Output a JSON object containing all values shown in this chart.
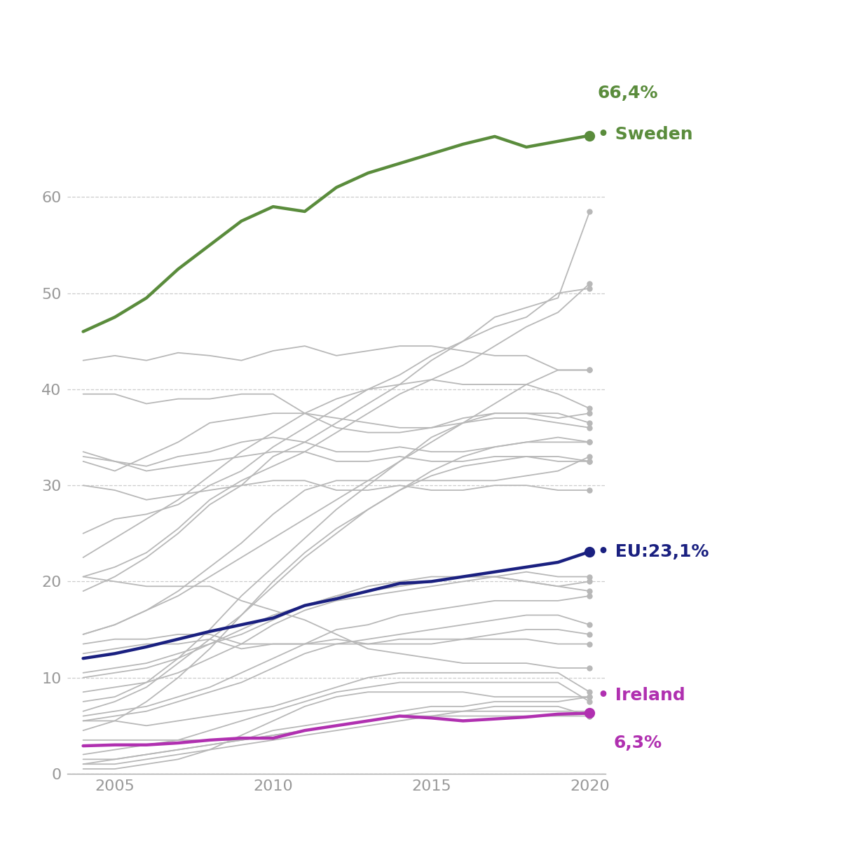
{
  "years": [
    2004,
    2005,
    2006,
    2007,
    2008,
    2009,
    2010,
    2011,
    2012,
    2013,
    2014,
    2015,
    2016,
    2017,
    2018,
    2019,
    2020
  ],
  "sweden": [
    46.0,
    47.5,
    49.5,
    52.5,
    55.0,
    57.5,
    59.0,
    58.5,
    61.0,
    62.5,
    63.5,
    64.5,
    65.5,
    66.3,
    65.2,
    65.8,
    66.4
  ],
  "ireland": [
    2.9,
    3.0,
    3.0,
    3.2,
    3.5,
    3.7,
    3.7,
    4.5,
    5.0,
    5.5,
    6.0,
    5.8,
    5.5,
    5.7,
    5.9,
    6.2,
    6.3
  ],
  "eu_avg": [
    12.0,
    12.5,
    13.2,
    14.0,
    14.8,
    15.5,
    16.2,
    17.5,
    18.2,
    19.0,
    19.8,
    20.0,
    20.5,
    21.0,
    21.5,
    22.0,
    23.1
  ],
  "other_countries": [
    [
      43.0,
      43.5,
      43.0,
      43.8,
      43.5,
      43.0,
      44.0,
      44.5,
      43.5,
      44.0,
      44.5,
      44.5,
      44.0,
      43.5,
      43.5,
      42.0,
      42.0
    ],
    [
      39.5,
      39.5,
      38.5,
      39.0,
      39.0,
      39.5,
      39.5,
      37.5,
      37.0,
      36.5,
      36.0,
      36.0,
      36.5,
      37.0,
      37.0,
      36.5,
      36.0
    ],
    [
      32.5,
      31.5,
      33.0,
      34.5,
      36.5,
      37.0,
      37.5,
      37.5,
      36.0,
      35.5,
      35.5,
      36.0,
      37.0,
      37.5,
      37.5,
      37.0,
      37.5
    ],
    [
      33.0,
      32.5,
      32.0,
      33.0,
      33.5,
      34.5,
      35.0,
      34.5,
      33.5,
      33.5,
      34.0,
      33.5,
      33.5,
      34.0,
      34.5,
      34.5,
      34.5
    ],
    [
      33.5,
      32.5,
      31.5,
      32.0,
      32.5,
      33.0,
      33.5,
      33.5,
      32.5,
      32.5,
      33.0,
      32.5,
      32.5,
      33.0,
      33.0,
      32.5,
      32.5
    ],
    [
      30.0,
      29.5,
      28.5,
      29.0,
      29.5,
      30.0,
      30.5,
      30.5,
      29.5,
      29.5,
      30.0,
      29.5,
      29.5,
      30.0,
      30.0,
      29.5,
      29.5
    ],
    [
      25.0,
      26.5,
      27.0,
      28.0,
      30.0,
      31.5,
      34.0,
      36.0,
      38.0,
      40.0,
      41.5,
      43.5,
      45.0,
      46.5,
      47.5,
      50.0,
      50.5
    ],
    [
      19.0,
      20.5,
      22.5,
      25.0,
      28.0,
      30.0,
      33.0,
      34.5,
      36.5,
      38.5,
      40.5,
      43.0,
      45.0,
      47.5,
      48.5,
      49.5,
      58.5
    ],
    [
      20.5,
      21.5,
      23.0,
      25.5,
      28.5,
      30.5,
      32.0,
      33.5,
      35.5,
      37.5,
      39.5,
      41.0,
      42.5,
      44.5,
      46.5,
      48.0,
      51.0
    ],
    [
      14.5,
      15.5,
      17.0,
      18.5,
      20.5,
      22.5,
      24.5,
      26.5,
      28.5,
      30.5,
      32.5,
      34.5,
      36.5,
      38.5,
      40.5,
      42.0,
      42.0
    ],
    [
      7.5,
      8.0,
      9.5,
      12.0,
      15.0,
      18.5,
      21.5,
      24.5,
      27.5,
      30.0,
      32.5,
      35.0,
      36.5,
      37.5,
      37.5,
      37.5,
      36.5
    ],
    [
      6.5,
      7.5,
      9.0,
      11.5,
      14.0,
      16.5,
      19.5,
      22.5,
      25.0,
      27.5,
      29.5,
      31.5,
      33.0,
      34.0,
      34.5,
      35.0,
      34.5
    ],
    [
      4.5,
      5.5,
      7.5,
      10.0,
      13.0,
      16.5,
      20.0,
      23.0,
      25.5,
      27.5,
      29.5,
      31.0,
      32.0,
      32.5,
      33.0,
      33.0,
      32.5
    ],
    [
      14.5,
      15.5,
      17.0,
      19.0,
      21.5,
      24.0,
      27.0,
      29.5,
      30.5,
      30.5,
      30.5,
      30.5,
      30.5,
      30.5,
      31.0,
      31.5,
      33.0
    ],
    [
      22.5,
      24.5,
      26.5,
      28.5,
      31.0,
      33.5,
      35.5,
      37.5,
      39.0,
      40.0,
      40.5,
      41.0,
      40.5,
      40.5,
      40.5,
      39.5,
      38.0
    ],
    [
      8.5,
      9.0,
      9.5,
      10.5,
      12.0,
      13.5,
      15.5,
      17.0,
      18.0,
      18.5,
      19.0,
      19.5,
      20.0,
      20.5,
      21.0,
      20.5,
      20.5
    ],
    [
      10.0,
      10.5,
      11.0,
      12.0,
      13.5,
      15.0,
      16.5,
      17.5,
      18.5,
      19.0,
      19.5,
      20.0,
      20.5,
      20.5,
      20.0,
      19.5,
      20.0
    ],
    [
      10.5,
      11.0,
      11.5,
      12.5,
      13.5,
      14.5,
      16.0,
      17.5,
      18.5,
      19.5,
      20.0,
      20.5,
      20.5,
      20.5,
      20.0,
      19.5,
      19.0
    ],
    [
      6.0,
      6.5,
      7.0,
      8.0,
      9.0,
      10.5,
      12.0,
      13.5,
      15.0,
      15.5,
      16.5,
      17.0,
      17.5,
      18.0,
      18.0,
      18.0,
      18.5
    ],
    [
      5.5,
      6.0,
      6.5,
      7.5,
      8.5,
      9.5,
      11.0,
      12.5,
      13.5,
      14.0,
      14.5,
      15.0,
      15.5,
      16.0,
      16.5,
      16.5,
      15.5
    ],
    [
      12.5,
      13.0,
      13.5,
      13.5,
      14.0,
      13.0,
      13.5,
      13.5,
      13.5,
      13.5,
      14.0,
      14.0,
      14.0,
      14.5,
      15.0,
      15.0,
      14.5
    ],
    [
      13.5,
      14.0,
      14.0,
      14.5,
      14.5,
      13.5,
      13.5,
      13.5,
      14.0,
      13.5,
      13.5,
      13.5,
      14.0,
      14.0,
      14.0,
      13.5,
      13.5
    ],
    [
      20.5,
      20.0,
      19.5,
      19.5,
      19.5,
      18.0,
      17.0,
      16.0,
      14.5,
      13.0,
      12.5,
      12.0,
      11.5,
      11.5,
      11.5,
      11.0,
      11.0
    ],
    [
      5.5,
      5.5,
      5.0,
      5.5,
      6.0,
      6.5,
      7.0,
      8.0,
      9.0,
      10.0,
      10.5,
      10.5,
      10.5,
      10.5,
      10.5,
      10.5,
      8.5
    ],
    [
      2.0,
      2.5,
      3.0,
      3.5,
      4.5,
      5.5,
      6.5,
      7.5,
      8.5,
      9.0,
      9.5,
      9.5,
      9.5,
      9.5,
      9.5,
      9.5,
      7.5
    ],
    [
      1.5,
      1.5,
      2.0,
      2.5,
      3.0,
      3.5,
      4.5,
      5.0,
      5.5,
      6.0,
      6.5,
      7.0,
      7.0,
      7.5,
      7.5,
      7.5,
      8.0
    ],
    [
      0.5,
      0.5,
      1.0,
      1.5,
      2.5,
      4.0,
      5.5,
      7.0,
      8.0,
      8.5,
      8.5,
      8.5,
      8.5,
      8.0,
      8.0,
      8.0,
      8.0
    ],
    [
      1.0,
      1.0,
      1.5,
      2.0,
      2.5,
      3.0,
      3.5,
      4.0,
      4.5,
      5.0,
      5.5,
      6.0,
      6.5,
      6.5,
      6.5,
      6.5,
      6.5
    ],
    [
      3.5,
      3.5,
      3.5,
      3.5,
      3.5,
      3.5,
      4.0,
      4.5,
      5.0,
      5.5,
      6.0,
      6.5,
      6.5,
      7.0,
      7.0,
      7.0,
      6.0
    ],
    [
      1.0,
      1.5,
      2.0,
      2.5,
      3.0,
      3.5,
      4.0,
      4.5,
      5.0,
      5.5,
      6.0,
      6.0,
      6.0,
      6.0,
      6.0,
      6.0,
      6.0
    ]
  ],
  "sweden_color": "#5a8c3c",
  "ireland_color": "#b030b0",
  "eu_color": "#1a2080",
  "grey_color": "#b8b8b8",
  "bg_color": "#ffffff",
  "grid_color": "#cccccc",
  "ylim": [
    0,
    70
  ],
  "yticks": [
    0,
    10,
    20,
    30,
    40,
    50,
    60
  ],
  "xticks": [
    2005,
    2010,
    2015,
    2020
  ],
  "xlim": [
    2003.5,
    2020.5
  ],
  "sweden_label": "Sweden",
  "ireland_label": "Ireland",
  "eu_label": "EU:",
  "sweden_pct": "66,4%",
  "ireland_pct": "6,3%",
  "eu_pct": "23,1%",
  "linewidth_highlight": 3.2,
  "linewidth_grey": 1.3,
  "label_fontsize": 18,
  "pct_fontsize": 18,
  "tick_fontsize": 16
}
